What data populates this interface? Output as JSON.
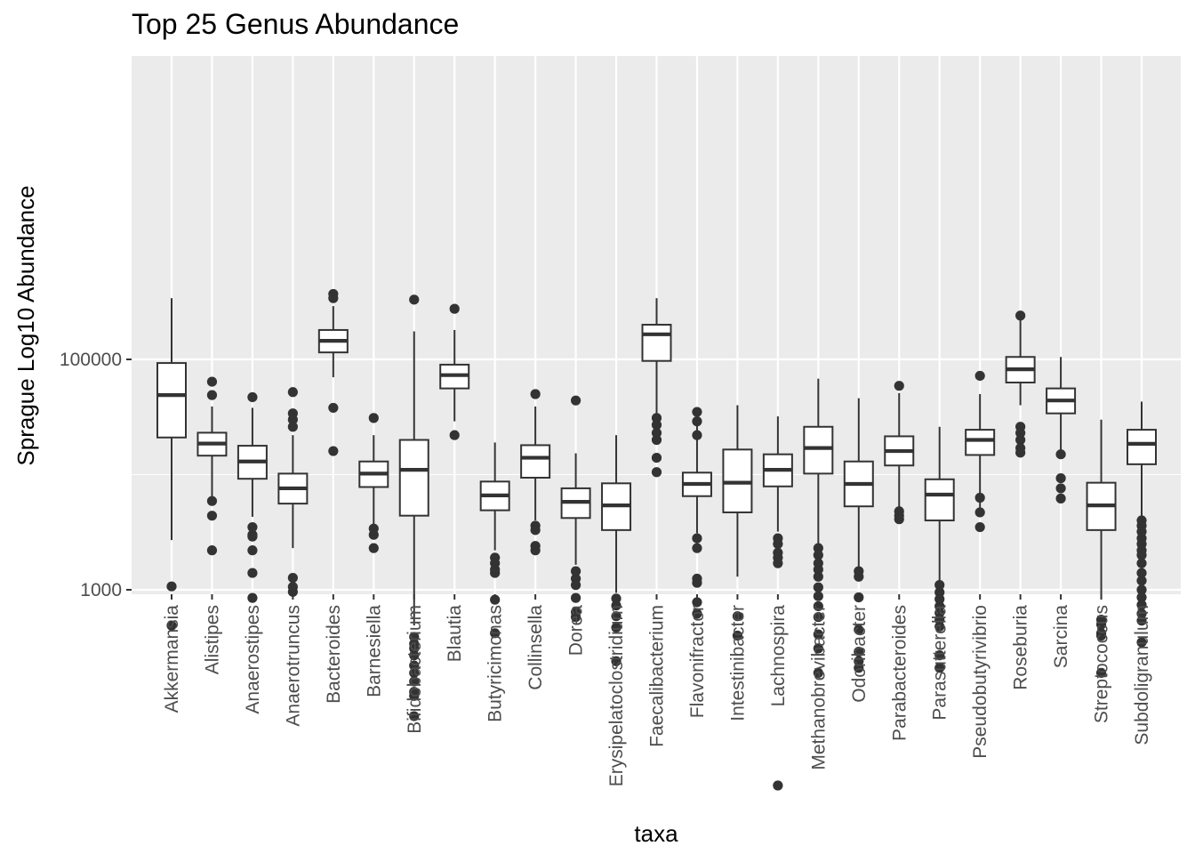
{
  "chart_data": {
    "type": "box",
    "title": "Top 25 Genus Abundance",
    "xlabel": "taxa",
    "ylabel": "Sprague Log10 Abundance",
    "y_scale": "log10",
    "ylim": [
      18,
      500000
    ],
    "yticks": [
      1000,
      100000
    ],
    "ytick_labels": [
      "1000",
      "100000"
    ],
    "grid": true,
    "legend": "none",
    "colors": {
      "panel": "#ebebeb",
      "grid": "#ffffff",
      "box_fill": "#ffffff",
      "box_line": "#333333",
      "outlier": "#333333"
    },
    "series": [
      {
        "category": "Akkermansia",
        "whisker_low": 2700,
        "q1": 21000,
        "median": 49000,
        "q3": 93000,
        "whisker_high": 340000,
        "outliers": [
          1070,
          490
        ]
      },
      {
        "category": "Alistipes",
        "whisker_low": 6400,
        "q1": 14600,
        "median": 18600,
        "q3": 23100,
        "whisker_high": 39000,
        "outliers": [
          64000,
          49000,
          5900,
          4400,
          2200
        ]
      },
      {
        "category": "Anaerostipes",
        "whisker_low": 4300,
        "q1": 9200,
        "median": 13000,
        "q3": 17800,
        "whisker_high": 38000,
        "outliers": [
          47000,
          3500,
          3000,
          2900,
          2200,
          1400,
          850
        ]
      },
      {
        "category": "Anaerotruncus",
        "whisker_low": 2300,
        "q1": 5600,
        "median": 7600,
        "q3": 10200,
        "whisker_high": 22000,
        "outliers": [
          52000,
          34000,
          30000,
          26000,
          1270,
          1060,
          960
        ]
      },
      {
        "category": "Bacteroides",
        "whisker_low": 70000,
        "q1": 115000,
        "median": 145000,
        "q3": 180000,
        "whisker_high": 290000,
        "outliers": [
          370000,
          340000,
          38000,
          16000
        ]
      },
      {
        "category": "Barnesiella",
        "whisker_low": 3700,
        "q1": 7800,
        "median": 10200,
        "q3": 13000,
        "whisker_high": 22000,
        "outliers": [
          31000,
          3400,
          3000,
          2300
        ]
      },
      {
        "category": "Bifidobacterium",
        "whisker_low": 490,
        "q1": 4400,
        "median": 11000,
        "q3": 20000,
        "whisker_high": 175000,
        "outliers": [
          330000,
          390,
          340,
          310,
          270,
          220,
          190,
          160,
          130,
          120,
          80
        ]
      },
      {
        "category": "Blautia",
        "whisker_low": 29000,
        "q1": 56000,
        "median": 73000,
        "q3": 90000,
        "whisker_high": 180000,
        "outliers": [
          275000,
          22000
        ]
      },
      {
        "category": "Butyricimonas",
        "whisker_low": 2200,
        "q1": 4900,
        "median": 6600,
        "q3": 8700,
        "whisker_high": 19000,
        "outliers": [
          1900,
          1700,
          1500,
          1400,
          820,
          420
        ]
      },
      {
        "category": "Collinsella",
        "whisker_low": 4000,
        "q1": 9400,
        "median": 14000,
        "q3": 18000,
        "whisker_high": 39000,
        "outliers": [
          50000,
          3600,
          3300,
          2400,
          2200
        ]
      },
      {
        "category": "Dorea",
        "whisker_low": 1650,
        "q1": 4200,
        "median": 5800,
        "q3": 7600,
        "whisker_high": 15300,
        "outliers": [
          44000,
          1450,
          1250,
          1100,
          850,
          640,
          580
        ]
      },
      {
        "category": "Erysipelatoclostridium",
        "whisker_low": 940,
        "q1": 3300,
        "median": 5400,
        "q3": 8400,
        "whisker_high": 22000,
        "outliers": [
          840,
          730,
          590,
          470,
          240
        ]
      },
      {
        "category": "Faecalibacterium",
        "whisker_low": 34000,
        "q1": 97000,
        "median": 165000,
        "q3": 200000,
        "whisker_high": 340000,
        "outliers": [
          31000,
          27000,
          23000,
          20000,
          14000,
          10500
        ]
      },
      {
        "category": "Flavonifractor",
        "whisker_low": 3100,
        "q1": 6500,
        "median": 8300,
        "q3": 10400,
        "whisker_high": 33000,
        "outliers": [
          35000,
          29000,
          22000,
          2800,
          2300,
          1250,
          1150,
          780,
          620
        ]
      },
      {
        "category": "Intestinibacter",
        "whisker_low": 1300,
        "q1": 4700,
        "median": 8500,
        "q3": 16500,
        "whisker_high": 40000,
        "outliers": [
          590,
          400
        ]
      },
      {
        "category": "Lachnospira",
        "whisker_low": 3200,
        "q1": 7900,
        "median": 11000,
        "q3": 15000,
        "whisker_high": 32000,
        "outliers": [
          2800,
          2500,
          2100,
          1900,
          1700,
          20
        ]
      },
      {
        "category": "Methanobrevibacter",
        "whisker_low": 2300,
        "q1": 10200,
        "median": 17000,
        "q3": 26000,
        "whisker_high": 68000,
        "outliers": [
          2300,
          2000,
          1700,
          1500,
          1300,
          1050,
          880,
          720,
          580,
          410,
          310,
          190
        ]
      },
      {
        "category": "Odoribacter",
        "whisker_low": 1450,
        "q1": 5300,
        "median": 8300,
        "q3": 13000,
        "whisker_high": 46000,
        "outliers": [
          1450,
          1300,
          860,
          450,
          290,
          240,
          210
        ]
      },
      {
        "category": "Parabacteroides",
        "whisker_low": 4600,
        "q1": 12000,
        "median": 16000,
        "q3": 21500,
        "whisker_high": 51000,
        "outliers": [
          59000,
          4800,
          4400,
          4100
        ]
      },
      {
        "category": "Parasutterella",
        "whisker_low": 1100,
        "q1": 4000,
        "median": 6700,
        "q3": 9100,
        "whisker_high": 26000,
        "outliers": [
          1100,
          950,
          830,
          720,
          630,
          550,
          480,
          270,
          210
        ]
      },
      {
        "category": "Pseudobutyrivibrio",
        "whisker_low": 4500,
        "q1": 14800,
        "median": 20000,
        "q3": 24500,
        "whisker_high": 50000,
        "outliers": [
          72000,
          6300,
          4700,
          3500
        ]
      },
      {
        "category": "Roseburia",
        "whisker_low": 40000,
        "q1": 63000,
        "median": 82000,
        "q3": 105000,
        "whisker_high": 250000,
        "outliers": [
          240000,
          26000,
          23000,
          20000,
          17000,
          15500
        ]
      },
      {
        "category": "Sarcina",
        "whisker_low": 15500,
        "q1": 34000,
        "median": 44000,
        "q3": 56000,
        "whisker_high": 105000,
        "outliers": [
          15000,
          9300,
          7600,
          6200
        ]
      },
      {
        "category": "Streptococcus",
        "whisker_low": 830,
        "q1": 3300,
        "median": 5400,
        "q3": 8500,
        "whisker_high": 30000,
        "outliers": [
          550,
          500,
          420,
          400,
          190
        ]
      },
      {
        "category": "Subdoligranulum",
        "whisker_low": 4200,
        "q1": 12300,
        "median": 18500,
        "q3": 24500,
        "whisker_high": 43000,
        "outliers": [
          4000,
          3600,
          3200,
          2800,
          2500,
          2200,
          2000,
          1700,
          1400,
          1200,
          1000,
          860,
          740,
          620,
          540,
          350
        ]
      }
    ]
  }
}
